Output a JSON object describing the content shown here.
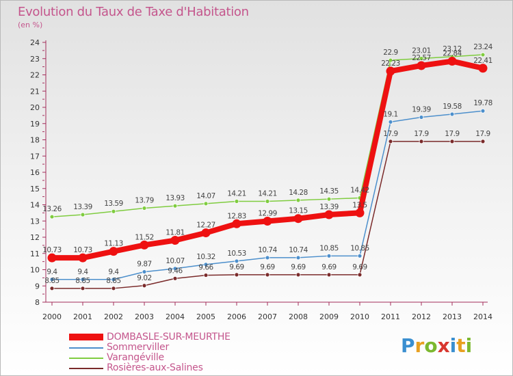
{
  "title": "Evolution du Taux de Taxe d'Habitation",
  "subtitle": "(en %)",
  "brand": {
    "letters": [
      {
        "ch": "P",
        "color": "#3a8fd0"
      },
      {
        "ch": "r",
        "color": "#e8a020"
      },
      {
        "ch": "o",
        "color": "#7cb82f"
      },
      {
        "ch": "x",
        "color": "#d8372f"
      },
      {
        "ch": "i",
        "color": "#3a8fd0"
      },
      {
        "ch": "t",
        "color": "#e8a020"
      },
      {
        "ch": "i",
        "color": "#7cb82f"
      }
    ]
  },
  "chart_data": {
    "type": "line",
    "x": [
      "2000",
      "2001",
      "2002",
      "2003",
      "2004",
      "2005",
      "2006",
      "2007",
      "2008",
      "2009",
      "2010",
      "2011",
      "2012",
      "2013",
      "2014"
    ],
    "ylim": [
      8,
      24
    ],
    "yticks": [
      8,
      9,
      10,
      11,
      12,
      13,
      14,
      15,
      16,
      17,
      18,
      19,
      20,
      21,
      22,
      23,
      24
    ],
    "grid": false,
    "legend_position": "bottom-left",
    "series": [
      {
        "name": "DOMBASLE-SUR-MEURTHE",
        "color": "#ee1111",
        "values": [
          10.73,
          10.73,
          11.13,
          11.52,
          11.81,
          12.27,
          12.83,
          12.99,
          13.15,
          13.39,
          13.5,
          22.23,
          22.57,
          22.84,
          22.41
        ],
        "labels": [
          "10.73",
          "10.73",
          "11.13",
          "11.52",
          "11.81",
          "12.27",
          "12.83",
          "12.99",
          "13.15",
          "13.39",
          "13.5",
          "22.23",
          "22.57",
          "22.84",
          "22.41"
        ]
      },
      {
        "name": "Sommerviller",
        "color": "#4c8fcc",
        "values": [
          9.4,
          9.4,
          9.4,
          9.87,
          10.07,
          10.32,
          10.53,
          10.74,
          10.74,
          10.85,
          10.85,
          19.1,
          19.39,
          19.58,
          19.78
        ],
        "labels": [
          "9.4",
          "9.4",
          "9.4",
          "9.87",
          "10.07",
          "10.32",
          "10.53",
          "10.74",
          "10.74",
          "10.85",
          "10.85",
          "19.1",
          "19.39",
          "19.58",
          "19.78"
        ]
      },
      {
        "name": "Varangéville",
        "color": "#7fcc3f",
        "values": [
          13.26,
          13.39,
          13.59,
          13.79,
          13.93,
          14.07,
          14.21,
          14.21,
          14.28,
          14.35,
          14.42,
          22.9,
          23.01,
          23.12,
          23.24
        ],
        "labels": [
          "13.26",
          "13.39",
          "13.59",
          "13.79",
          "13.93",
          "14.07",
          "14.21",
          "14.21",
          "14.28",
          "14.35",
          "14.42",
          "22.9",
          "23.01",
          "23.12",
          "23.24"
        ]
      },
      {
        "name": "Rosières-aux-Salines",
        "color": "#7a2a2a",
        "values": [
          8.85,
          8.85,
          8.85,
          9.02,
          9.46,
          9.66,
          9.69,
          9.69,
          9.69,
          9.69,
          9.69,
          17.9,
          17.9,
          17.9,
          17.9
        ],
        "labels": [
          "8.85",
          "8.85",
          "8.85",
          "9.02",
          "9.46",
          "9.66",
          "9.69",
          "9.69",
          "9.69",
          "9.69",
          "9.69",
          "17.9",
          "17.9",
          "17.9",
          "17.9"
        ]
      }
    ]
  }
}
